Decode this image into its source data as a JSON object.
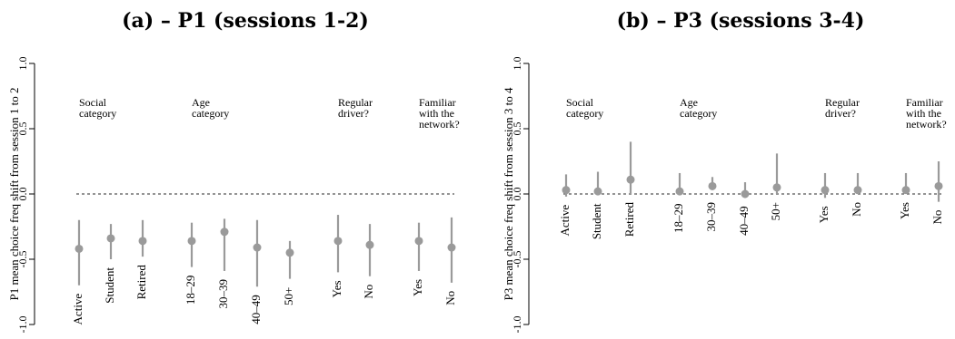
{
  "chart_data": [
    {
      "type": "scatter",
      "title": "(a) – P1 (sessions 1-2)",
      "ylabel": "P1 mean choice freq shift from session 1 to 2",
      "ylim": [
        -1.0,
        1.0
      ],
      "yticks": [
        "-1.0",
        "-0.5",
        "0.0",
        "0.5",
        "1.0"
      ],
      "reference_line": 0.0,
      "groups": [
        {
          "label_lines": [
            "Social",
            "category"
          ],
          "categories": [
            "Active",
            "Student",
            "Retired"
          ],
          "estimates": [
            -0.42,
            -0.34,
            -0.36
          ],
          "lower": [
            -0.7,
            -0.5,
            -0.48
          ],
          "upper": [
            -0.2,
            -0.23,
            -0.2
          ]
        },
        {
          "label_lines": [
            "Age",
            "category"
          ],
          "categories": [
            "18–29",
            "30–39",
            "40–49",
            "50+"
          ],
          "estimates": [
            -0.36,
            -0.29,
            -0.41,
            -0.45
          ],
          "lower": [
            -0.56,
            -0.59,
            -0.71,
            -0.65
          ],
          "upper": [
            -0.22,
            -0.19,
            -0.2,
            -0.36
          ]
        },
        {
          "label_lines": [
            "Regular",
            "driver?"
          ],
          "categories": [
            "Yes",
            "No"
          ],
          "estimates": [
            -0.36,
            -0.39
          ],
          "lower": [
            -0.6,
            -0.63
          ],
          "upper": [
            -0.16,
            -0.23
          ]
        },
        {
          "label_lines": [
            "Familiar",
            "with the",
            "network?"
          ],
          "categories": [
            "Yes",
            "No"
          ],
          "estimates": [
            -0.36,
            -0.41
          ],
          "lower": [
            -0.59,
            -0.68
          ],
          "upper": [
            -0.22,
            -0.18
          ]
        }
      ]
    },
    {
      "type": "scatter",
      "title": "(b) – P3 (sessions 3-4)",
      "ylabel": "P3 mean choice freq shift from session 3 to 4",
      "ylim": [
        -1.0,
        1.0
      ],
      "yticks": [
        "-1.0",
        "-0.5",
        "0.0",
        "0.5",
        "1.0"
      ],
      "reference_line": 0.0,
      "groups": [
        {
          "label_lines": [
            "Social",
            "category"
          ],
          "categories": [
            "Active",
            "Student",
            "Retired"
          ],
          "estimates": [
            0.03,
            0.02,
            0.11
          ],
          "lower": [
            -0.02,
            -0.01,
            0.0
          ],
          "upper": [
            0.15,
            0.17,
            0.4
          ]
        },
        {
          "label_lines": [
            "Age",
            "category"
          ],
          "categories": [
            "18–29",
            "30–39",
            "40–49",
            "50+"
          ],
          "estimates": [
            0.02,
            0.06,
            0.0,
            0.05
          ],
          "lower": [
            -0.01,
            0.03,
            -0.03,
            0.0
          ],
          "upper": [
            0.16,
            0.13,
            0.09,
            0.31
          ]
        },
        {
          "label_lines": [
            "Regular",
            "driver?"
          ],
          "categories": [
            "Yes",
            "No"
          ],
          "estimates": [
            0.03,
            0.03
          ],
          "lower": [
            -0.03,
            0.0
          ],
          "upper": [
            0.16,
            0.16
          ]
        },
        {
          "label_lines": [
            "Familiar",
            "with the",
            "network?"
          ],
          "categories": [
            "Yes",
            "No"
          ],
          "estimates": [
            0.03,
            0.06
          ],
          "lower": [
            0.0,
            -0.06
          ],
          "upper": [
            0.16,
            0.25
          ]
        }
      ]
    }
  ],
  "colors": {
    "marker": "#9a9a9a",
    "reference_line": "#555555",
    "axis": "#000000"
  }
}
